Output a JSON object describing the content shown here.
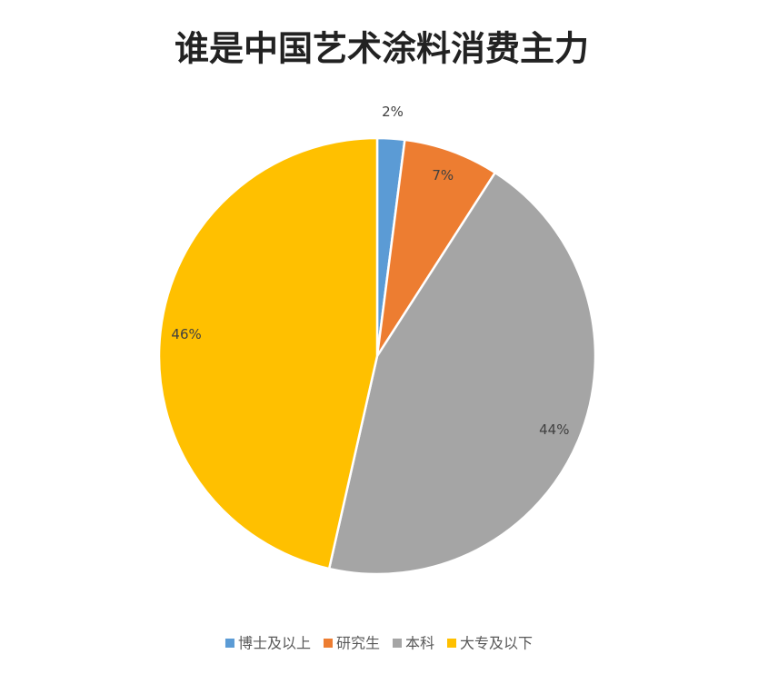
{
  "chart_data": {
    "type": "pie",
    "title": "谁是中国艺术涂料消费主力",
    "categories": [
      "博士及以上",
      "研究生",
      "本科",
      "大专及以下"
    ],
    "values": [
      2,
      7,
      44,
      46
    ],
    "value_labels": [
      "2%",
      "7%",
      "44%",
      "46%"
    ],
    "colors": [
      "#5b9bd5",
      "#ed7d31",
      "#a5a5a5",
      "#ffc000"
    ],
    "legend": "bottom"
  }
}
